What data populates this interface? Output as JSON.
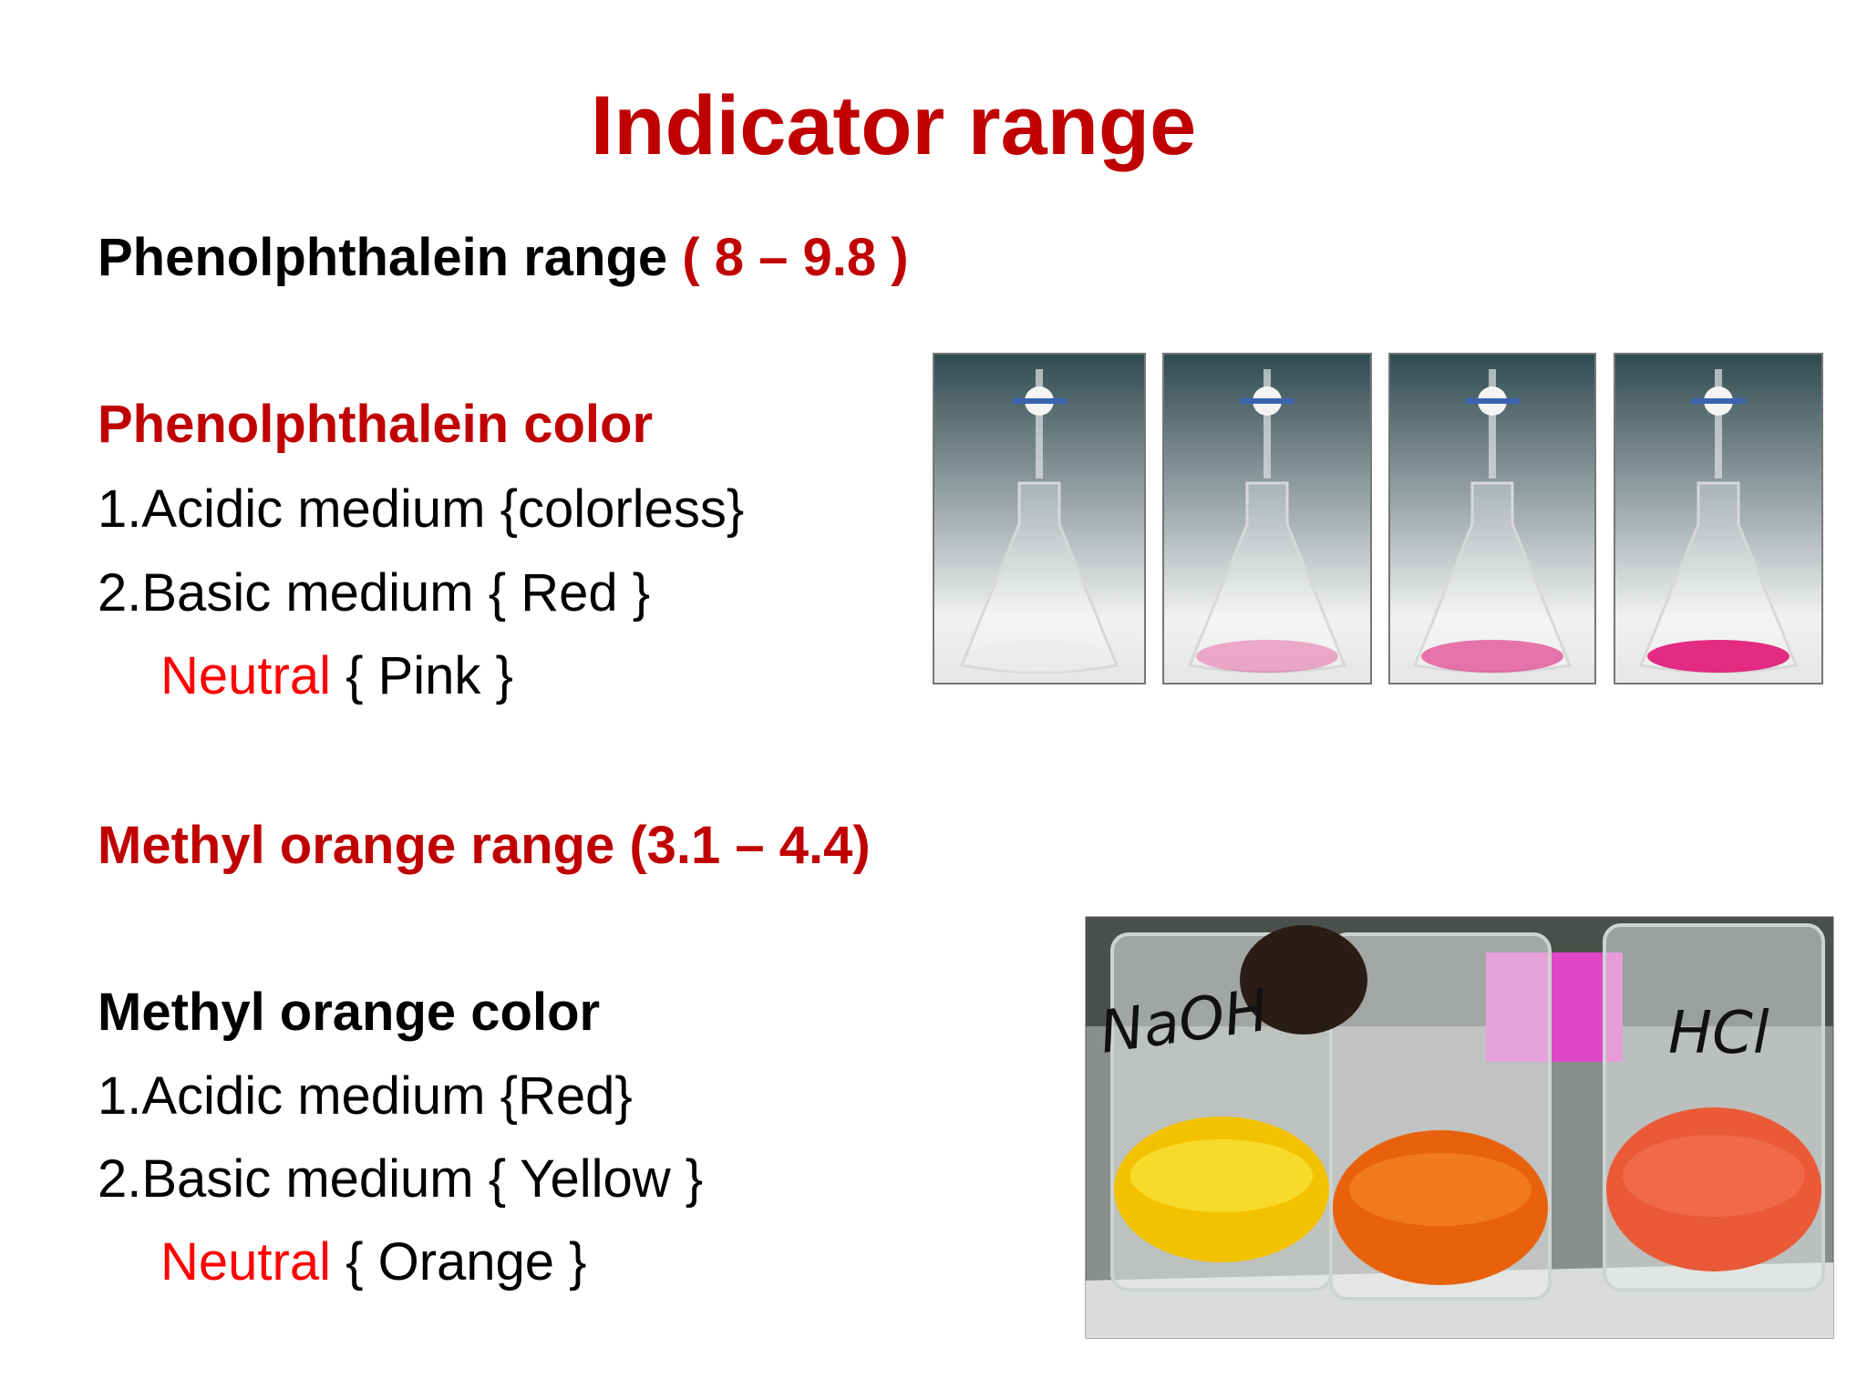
{
  "slide": {
    "title": "Indicator range",
    "phenolphthalein_range": {
      "label": "Phenolphthalein range",
      "range": "( 8 – 9.8 )"
    },
    "phenolphthalein_color": {
      "heading": "Phenolphthalein color",
      "acidic": "1.Acidic medium {colorless}",
      "basic": "2.Basic medium { Red }",
      "neutral_label": "Neutral",
      "neutral_value": "{ Pink }"
    },
    "methyl_orange_range": "Methyl orange range (3.1 – 4.4)",
    "methyl_orange_color": {
      "heading": "Methyl orange color",
      "acidic": "1.Acidic medium {Red}",
      "basic": "2.Basic medium { Yellow }",
      "neutral_label": "Neutral",
      "neutral_value": "{ Orange }"
    },
    "photo_labels": [
      "NaOH",
      "HCl"
    ]
  }
}
